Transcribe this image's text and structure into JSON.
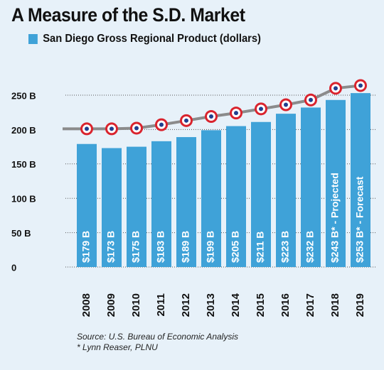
{
  "chart_data": {
    "type": "bar",
    "title": "A Measure of the S.D. Market",
    "legend": [
      "San Diego Gross Regional Product (dollars)"
    ],
    "categories": [
      "2008",
      "2009",
      "2010",
      "2011",
      "2012",
      "2013",
      "2014",
      "2015",
      "2016",
      "2017",
      "2018",
      "2019"
    ],
    "series": [
      {
        "name": "San Diego Gross Regional Product (dollars)",
        "values": [
          179,
          173,
          175,
          183,
          189,
          199,
          205,
          211,
          223,
          232,
          243,
          253
        ],
        "data_labels": [
          "$179 B",
          "$173 B",
          "$175 B",
          "$183 B",
          "$189 B",
          "$199 B",
          "$205 B",
          "$211 B",
          "$223 B",
          "$232 B",
          "$243 B* - Projected",
          "$253 B* - Forecast"
        ]
      }
    ],
    "line_overlay_values": [
      201,
      201,
      202,
      207,
      213,
      219,
      224,
      230,
      236,
      243,
      260,
      264
    ],
    "y_ticks": [
      "0",
      "50 B",
      "100 B",
      "150 B",
      "200 B",
      "250 B"
    ],
    "y_tick_values": [
      0,
      50,
      100,
      150,
      200,
      250
    ],
    "ylim": [
      0,
      270
    ],
    "grid": true,
    "legend_position": "top-left",
    "colors": {
      "bar": "#3fa2d8",
      "line": "#8b8b8b",
      "marker_ring": "#d9232d",
      "background": "#e7f1f9"
    }
  },
  "source_lines": [
    "Source: U.S. Bureau of Economic Analysis",
    "* Lynn Reaser, PLNU"
  ]
}
